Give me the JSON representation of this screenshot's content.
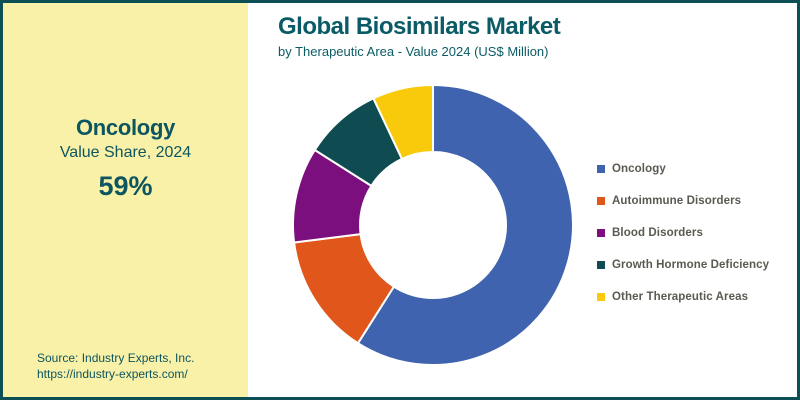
{
  "header": {
    "title": "Global Biosimilars Market",
    "subtitle": "by Therapeutic Area - Value 2024 (US$ Million)"
  },
  "highlight_panel": {
    "category": "Oncology",
    "caption": "Value Share, 2024",
    "value": "59%",
    "source_line1": "Source: Industry Experts, Inc.",
    "source_line2": "https://industry-experts.com/",
    "background": "#f8f1a7",
    "text_color": "#0d5560"
  },
  "chart_data": {
    "type": "pie",
    "subtype": "donut",
    "title": "Global Biosimilars Market",
    "subtitle": "by Therapeutic Area - Value 2024 (US$ Million)",
    "categories": [
      "Oncology",
      "Autoimmune Disorders",
      "Blood Disorders",
      "Growth Hormone Deficiency",
      "Other Therapeutic Areas"
    ],
    "values": [
      59,
      14,
      11,
      9,
      7
    ],
    "unit": "percent value share",
    "labeled_values": {
      "Oncology": "59%"
    },
    "colors": [
      "#3f63ae",
      "#e0561b",
      "#7b0f7d",
      "#0e4c51",
      "#f9ca0b"
    ],
    "start_angle": "top, clockwise",
    "inner_radius_ratio": 0.52,
    "slice_gap_color": "#ffffff",
    "legend_position": "right"
  },
  "legend": {
    "items": [
      {
        "label": "Oncology",
        "color": "#3f63ae"
      },
      {
        "label": "Autoimmune Disorders",
        "color": "#e0561b"
      },
      {
        "label": "Blood Disorders",
        "color": "#7b0f7d"
      },
      {
        "label": "Growth Hormone Deficiency",
        "color": "#0e4c51"
      },
      {
        "label": "Other Therapeutic Areas",
        "color": "#f9ca0b"
      }
    ]
  },
  "theme": {
    "frame_border": "#0c4f54",
    "teal_text": "#0b5b66",
    "legend_text": "#5a5952",
    "background": "#ffffff"
  }
}
